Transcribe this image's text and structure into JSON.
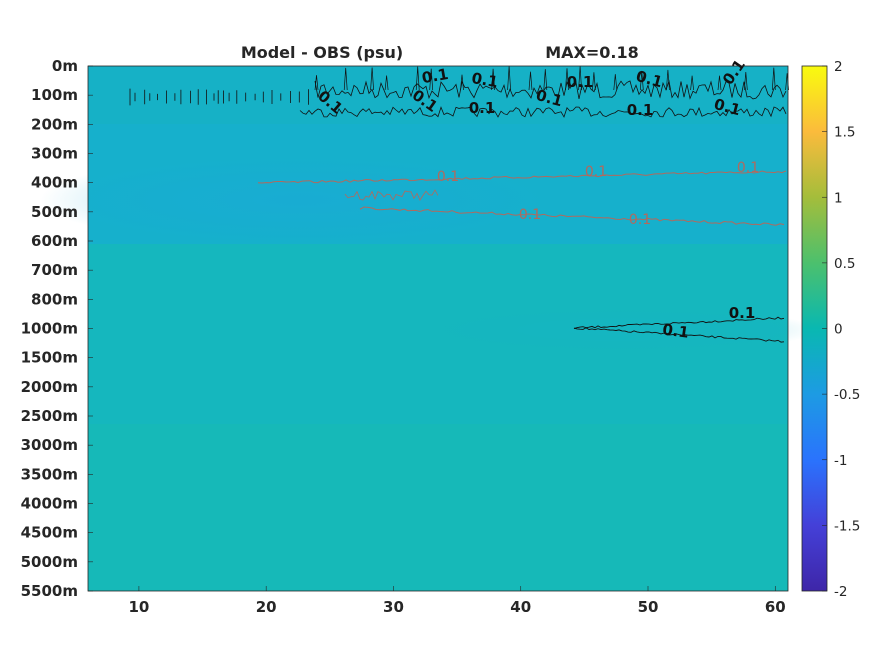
{
  "chart_data": {
    "type": "heatmap",
    "title_left": "Model - OBS (psu)",
    "title_right": "MAX=0.18",
    "x_ticks": [
      10,
      20,
      30,
      40,
      50,
      60
    ],
    "xlim": [
      6,
      61
    ],
    "y_ticks": [
      "0m",
      "100m",
      "200m",
      "300m",
      "400m",
      "500m",
      "600m",
      "700m",
      "800m",
      "1000m",
      "1500m",
      "2000m",
      "2500m",
      "3000m",
      "3500m",
      "4000m",
      "4500m",
      "5000m",
      "5500m"
    ],
    "colorbar": {
      "ticks": [
        "2",
        "1.5",
        "1",
        "0.5",
        "0",
        "-0.5",
        "-1",
        "-1.5",
        "-2"
      ],
      "range": [
        -2,
        2
      ],
      "colors": [
        "#f9fb0e",
        "#fbbb3c",
        "#a4bd3b",
        "#4cc06d",
        "#09b8b1",
        "#1d9be3",
        "#2a73fd",
        "#4440d8",
        "#3e26a8"
      ]
    },
    "contour_level": 0.1,
    "contour_labels": [
      "0.1",
      "0.1",
      "0.1",
      "0.1",
      "0.1",
      "0.1",
      "0.1",
      "0.1",
      "0.1",
      "0.1",
      "0.1",
      "0.1",
      "0.1",
      "0.1",
      "0.1",
      "0.1",
      "0.1",
      "0.1"
    ],
    "field_colors": {
      "surface": "#14b3c6",
      "upper": "#15b2bd",
      "intermediate": "#1aafd3",
      "middle": "#16b7c2",
      "deep": "#16b9b8"
    }
  }
}
